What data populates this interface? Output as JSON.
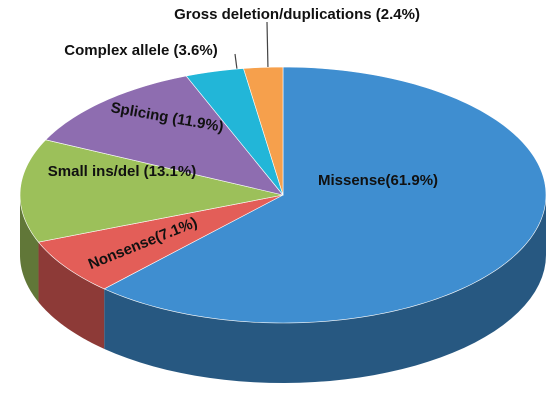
{
  "chart_data": {
    "type": "pie3d",
    "categories": [
      "Missense(61.9%)",
      "Nonsense(7.1%)",
      "Small ins/del (13.1%)",
      "Splicing (11.9%)",
      "Complex allele (3.6%)",
      "Gross deletion/duplications (2.4%)"
    ],
    "values": [
      61.9,
      7.1,
      13.1,
      11.9,
      3.6,
      2.4
    ],
    "colors": [
      "#3f8ed0",
      "#e35e58",
      "#9cc05a",
      "#8e6db0",
      "#22b6d8",
      "#f6a04c"
    ]
  }
}
